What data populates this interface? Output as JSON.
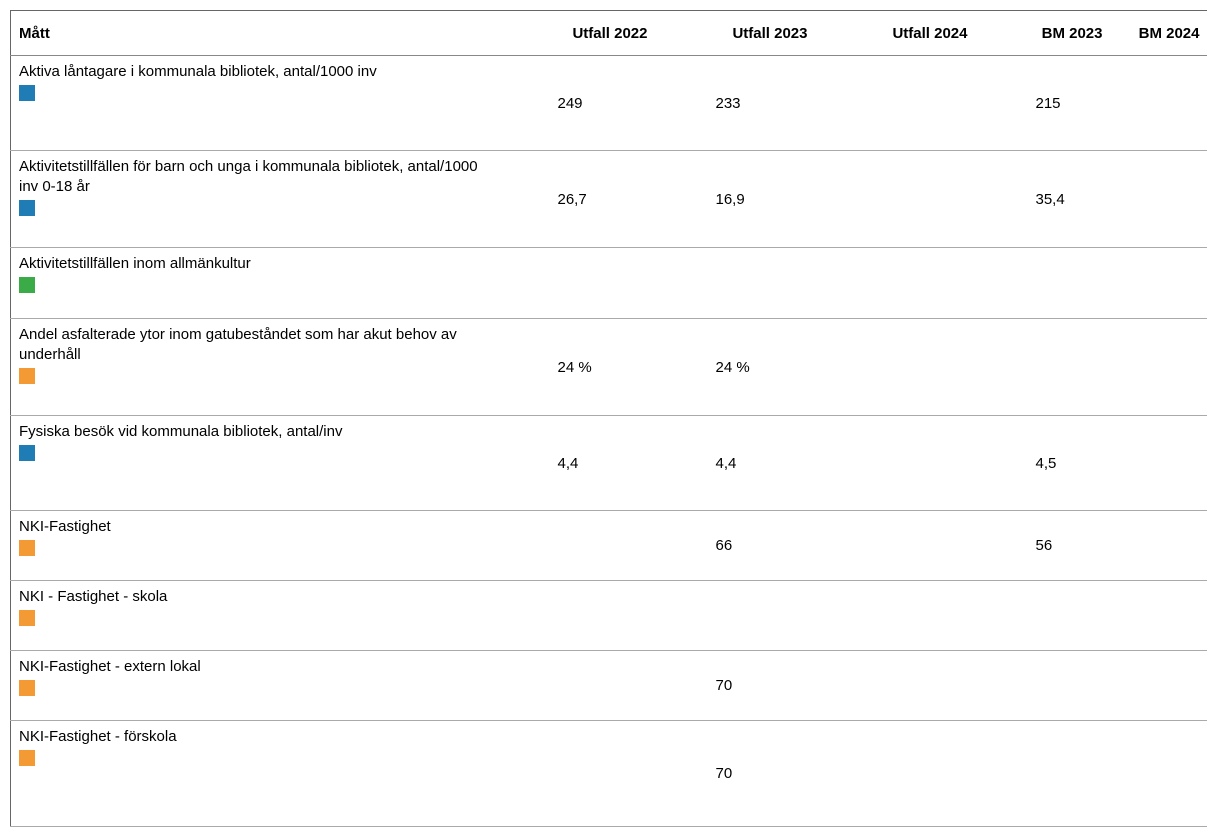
{
  "table": {
    "columns": [
      "Mått",
      "Utfall 2022",
      "Utfall 2023",
      "Utfall 2024",
      "BM 2023",
      "BM 2024"
    ],
    "rows": [
      {
        "label": "Aktiva låntagare i kommunala bibliotek, antal/1000 inv",
        "utfall_2022": "249",
        "utfall_2023": "233",
        "bm_2023": "215"
      },
      {
        "label": "Aktivitetstillfällen för barn och unga i kommunala bibliotek, antal/1000 inv 0-18 år",
        "utfall_2022": "26,7",
        "utfall_2023": "16,9",
        "bm_2023": "35,4"
      },
      {
        "label": "Aktivitetstillfällen inom allmänkultur"
      },
      {
        "label": "Andel asfalterade ytor inom gatubeståndet som har akut behov av underhåll",
        "utfall_2022": "24 %",
        "utfall_2023": "24 %"
      },
      {
        "label": "Fysiska besök vid kommunala bibliotek, antal/inv",
        "utfall_2022": "4,4",
        "utfall_2023": "4,4",
        "bm_2023": "4,5"
      },
      {
        "label": "NKI-Fastighet",
        "utfall_2023": "66",
        "bm_2023": "56"
      },
      {
        "label": "NKI - Fastighet - skola"
      },
      {
        "label": "NKI-Fastighet - extern lokal",
        "utfall_2023": "70"
      },
      {
        "label": "NKI-Fastighet - förskola",
        "utfall_2023": "70"
      }
    ]
  }
}
